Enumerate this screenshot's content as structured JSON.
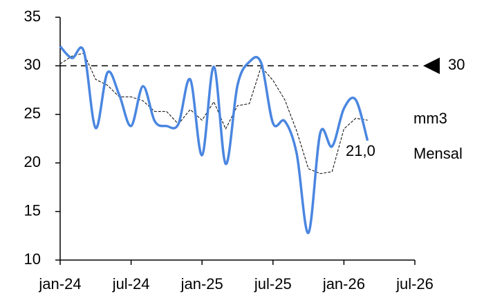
{
  "chart_data": {
    "type": "line",
    "categories": [
      "jan-24",
      null,
      null,
      null,
      null,
      null,
      "jul-24",
      null,
      null,
      null,
      null,
      null,
      "jan-25",
      null,
      null,
      null,
      null,
      null,
      "jul-25",
      null,
      null,
      null,
      null,
      null,
      "jan-26",
      null,
      null,
      null,
      null,
      null,
      "jul-26"
    ],
    "series": [
      {
        "name": "Mensal",
        "color": "#4a86e0",
        "style": "solid",
        "values": [
          32,
          30.8,
          31.5,
          23.6,
          29.3,
          27,
          23.8,
          27.9,
          24.3,
          23.8,
          24,
          28.6,
          20.8,
          29.9,
          19.9,
          28,
          30.4,
          30.3,
          24.1,
          24.3,
          21,
          12.8,
          23.1,
          21.7,
          25.6,
          26.5,
          22.3,
          null,
          null,
          null,
          null
        ]
      },
      {
        "name": "mm3",
        "color": "#000000",
        "style": "dashed",
        "values": [
          30.2,
          31,
          31.3,
          28.6,
          28,
          26.8,
          26.8,
          26.4,
          25.3,
          25.3,
          24,
          25.5,
          24.4,
          26.3,
          23.5,
          25.9,
          26.1,
          29.9,
          28.5,
          26.5,
          23.3,
          19.4,
          18.9,
          19.1,
          23.5,
          24.6,
          24.4,
          null,
          null,
          null,
          null
        ]
      }
    ],
    "ylim": [
      10,
      35
    ],
    "yticks": [
      10,
      15,
      20,
      25,
      30,
      35
    ],
    "reference_line": {
      "value": 30,
      "label": "30"
    },
    "annotation": "21,0"
  }
}
